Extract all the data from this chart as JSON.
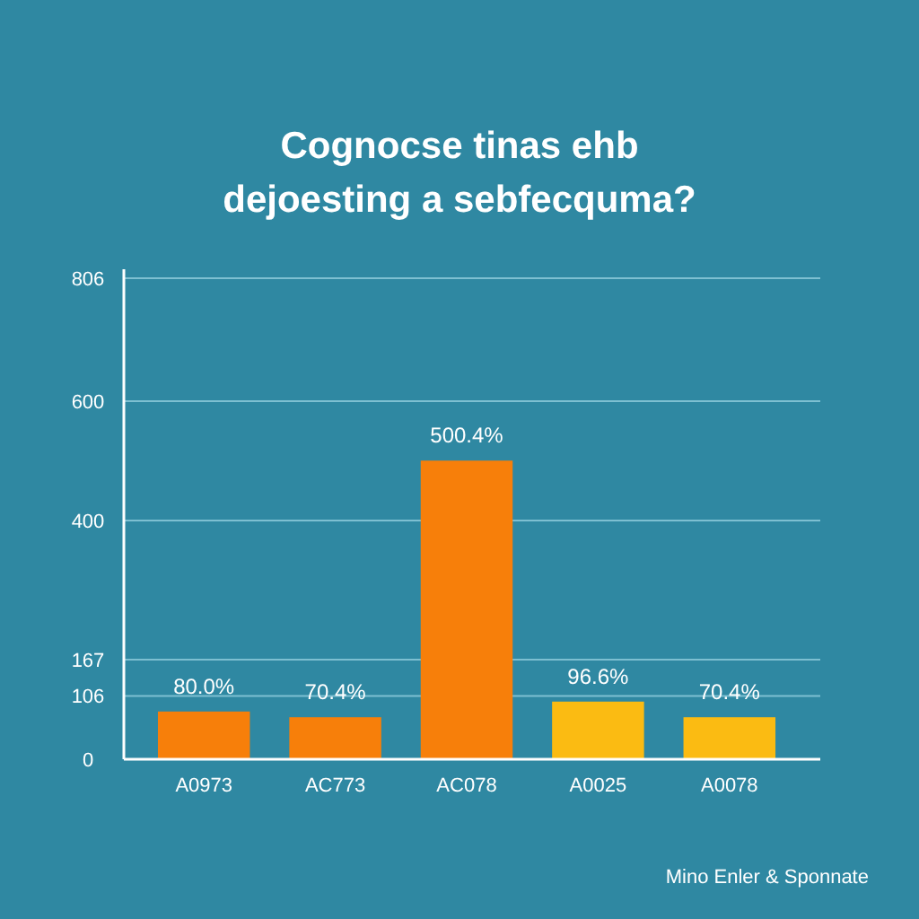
{
  "chart_data": {
    "type": "bar",
    "title": "Cognocse tinas ehb\ndejoesting a sebfecquma?",
    "categories": [
      "A0973",
      "AC773",
      "AC078",
      "A0025",
      "A0078"
    ],
    "values": [
      80,
      70.4,
      500.4,
      96.6,
      70.4
    ],
    "colors": [
      "#f77f0a",
      "#f77f0a",
      "#f77f0a",
      "#fbbb12",
      "#fbbb12"
    ],
    "value_labels": [
      "80.0%",
      "70.4%",
      "500.4%",
      "96.6%",
      "70.4%"
    ],
    "ylim": [
      0,
      806
    ],
    "yticks": [
      0,
      167,
      106,
      400,
      806,
      600
    ],
    "grid": "y",
    "annotations": [
      "Mino Enler & Sponnate"
    ]
  }
}
